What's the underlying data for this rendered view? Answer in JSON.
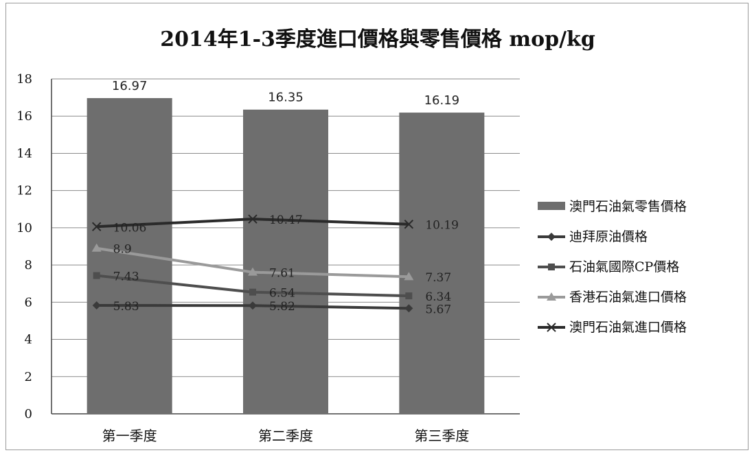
{
  "chart_data": {
    "type": "bar",
    "title": "2014年1-3季度進口價格與零售價格  mop/kg",
    "categories": [
      "第一季度",
      "第二季度",
      "第三季度"
    ],
    "ylim": [
      0,
      18
    ],
    "yticks": [
      "0",
      "2",
      "4",
      "6",
      "8",
      "10",
      "12",
      "14",
      "16",
      "18"
    ],
    "grid": true,
    "legend_position": "right",
    "bar_series": {
      "name": "澳門石油氣零售價格",
      "values": [
        16.97,
        16.35,
        16.19
      ],
      "labels": [
        "16.97",
        "16.35",
        "16.19"
      ],
      "color": "#6e6e6e"
    },
    "line_series": [
      {
        "name": "迪拜原油價格",
        "values": [
          5.83,
          5.82,
          5.67
        ],
        "labels": [
          "5.83",
          "5.82",
          "5.67"
        ],
        "color": "#3a3a3a",
        "marker": "diamond"
      },
      {
        "name": "石油氣國際CP價格",
        "values": [
          7.43,
          6.54,
          6.34
        ],
        "labels": [
          "7.43",
          "6.54",
          "6.34"
        ],
        "color": "#4e4e4e",
        "marker": "square"
      },
      {
        "name": "香港石油氣進口價格",
        "values": [
          8.9,
          7.61,
          7.37
        ],
        "labels": [
          "8.9",
          "7.61",
          "7.37"
        ],
        "color": "#9a9a9a",
        "marker": "triangle"
      },
      {
        "name": "澳門石油氣進口價格",
        "values": [
          10.06,
          10.47,
          10.19
        ],
        "labels": [
          "10.06",
          "10.47",
          "10.19"
        ],
        "color": "#2a2a2a",
        "marker": "x"
      }
    ]
  }
}
